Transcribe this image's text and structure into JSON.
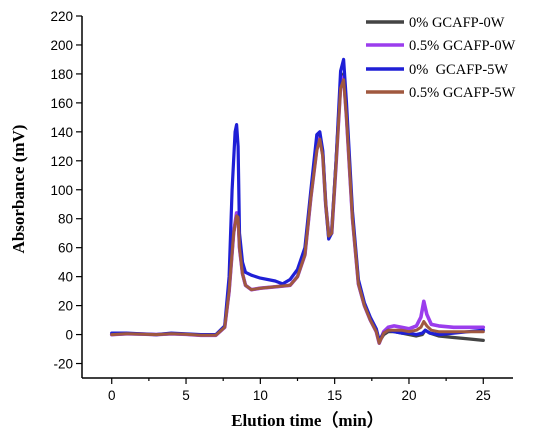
{
  "chart_data": {
    "type": "line",
    "title": "",
    "xlabel": "Elution time（min）",
    "ylabel": "Absorbance (mV)",
    "xlim": [
      -2,
      27
    ],
    "ylim": [
      -30,
      220
    ],
    "xticks": [
      0,
      5,
      10,
      15,
      20,
      25
    ],
    "yticks": [
      -20,
      0,
      20,
      40,
      60,
      80,
      100,
      120,
      140,
      160,
      180,
      200,
      220
    ],
    "grid": false,
    "legend": "top-right",
    "series": [
      {
        "name": "0% GCAFP-0W",
        "color": "#444444",
        "x": [
          0,
          1,
          2,
          3,
          4,
          5,
          6,
          7,
          7.6,
          7.9,
          8.2,
          8.4,
          8.5,
          8.6,
          8.8,
          9.0,
          9.4,
          10,
          11,
          12,
          12.5,
          13.0,
          13.4,
          13.8,
          14.0,
          14.2,
          14.4,
          14.6,
          14.8,
          15.1,
          15.4,
          15.6,
          15.8,
          16.2,
          16.6,
          17.0,
          17.4,
          17.8,
          18.0,
          18.3,
          18.6,
          19,
          19.5,
          20,
          20.5,
          20.9,
          21.1,
          21.4,
          22,
          23,
          24,
          25
        ],
        "y": [
          0,
          0.5,
          0.3,
          0,
          0.5,
          0.2,
          -0.5,
          -0.5,
          5,
          30,
          70,
          83,
          82,
          60,
          42,
          34,
          31,
          32,
          33,
          34,
          40,
          55,
          95,
          130,
          138,
          125,
          90,
          70,
          72,
          120,
          175,
          180,
          150,
          80,
          35,
          20,
          10,
          2,
          -5,
          0,
          2,
          2,
          1,
          0,
          -1,
          0,
          3,
          1,
          -1,
          -2,
          -3,
          -4
        ]
      },
      {
        "name": "0.5% GCAFP-0W",
        "color": "#9b3ded",
        "x": [
          0,
          1,
          2,
          3,
          4,
          5,
          6,
          7,
          7.6,
          7.9,
          8.2,
          8.4,
          8.5,
          8.6,
          8.8,
          9.0,
          9.4,
          10,
          11,
          12,
          12.5,
          13.0,
          13.4,
          13.8,
          14.0,
          14.2,
          14.4,
          14.6,
          14.8,
          15.1,
          15.4,
          15.6,
          15.8,
          16.2,
          16.6,
          17.0,
          17.4,
          17.8,
          18.0,
          18.3,
          18.6,
          19,
          19.5,
          20,
          20.5,
          20.8,
          21.0,
          21.2,
          21.5,
          22,
          23,
          24,
          25
        ],
        "y": [
          0,
          0.5,
          0.3,
          0,
          0.5,
          0.2,
          -0.5,
          -0.5,
          5,
          30,
          70,
          84,
          83,
          60,
          42,
          34,
          31,
          32,
          33,
          34,
          40,
          55,
          95,
          128,
          136,
          124,
          90,
          68,
          70,
          118,
          172,
          178,
          150,
          80,
          35,
          20,
          10,
          2,
          -6,
          2,
          5,
          6,
          5,
          4,
          6,
          12,
          23,
          14,
          7,
          6,
          5,
          5,
          5
        ]
      },
      {
        "name": "0%  GCAFP-5W",
        "color": "#1f1fd6",
        "x": [
          0,
          1,
          2,
          3,
          4,
          5,
          6,
          7,
          7.6,
          7.9,
          8.1,
          8.3,
          8.4,
          8.5,
          8.6,
          8.8,
          9.0,
          9.4,
          10,
          11,
          11.5,
          12,
          12.5,
          13.0,
          13.4,
          13.8,
          14.0,
          14.2,
          14.4,
          14.6,
          14.8,
          15.1,
          15.4,
          15.6,
          15.8,
          16.2,
          16.6,
          17.0,
          17.4,
          17.8,
          18.0,
          18.3,
          18.6,
          19,
          19.5,
          20,
          20.5,
          20.9,
          21.1,
          21.4,
          22,
          23,
          24,
          25
        ],
        "y": [
          1,
          1,
          0.5,
          0,
          1,
          0.5,
          0,
          0,
          6,
          40,
          100,
          140,
          145,
          130,
          70,
          50,
          43,
          41,
          39,
          37,
          35,
          38,
          45,
          60,
          100,
          138,
          140,
          127,
          90,
          66,
          70,
          120,
          182,
          190,
          160,
          85,
          38,
          22,
          12,
          4,
          -4,
          1,
          3,
          2,
          1,
          1,
          0,
          1,
          3,
          1,
          0,
          1,
          2,
          3
        ]
      },
      {
        "name": "0.5% GCAFP-5W",
        "color": "#a0583f",
        "x": [
          0,
          1,
          2,
          3,
          4,
          5,
          6,
          7,
          7.6,
          7.9,
          8.2,
          8.4,
          8.5,
          8.6,
          8.8,
          9.0,
          9.4,
          10,
          11,
          12,
          12.5,
          13.0,
          13.4,
          13.8,
          14.0,
          14.2,
          14.4,
          14.6,
          14.8,
          15.1,
          15.4,
          15.6,
          15.8,
          16.2,
          16.6,
          17.0,
          17.4,
          17.8,
          18.0,
          18.3,
          18.6,
          19,
          19.5,
          20,
          20.5,
          20.8,
          21.0,
          21.2,
          21.5,
          22,
          23,
          24,
          25
        ],
        "y": [
          0,
          0.5,
          0.3,
          0,
          0.5,
          0.2,
          -0.5,
          -0.5,
          5,
          30,
          70,
          82,
          81,
          60,
          42,
          34,
          31,
          32,
          33,
          34,
          40,
          55,
          95,
          127,
          135,
          123,
          90,
          68,
          70,
          118,
          170,
          176,
          150,
          80,
          35,
          20,
          10,
          2,
          -6,
          1,
          3,
          3,
          3,
          2,
          3,
          5,
          9,
          6,
          3,
          2,
          2,
          2,
          2
        ]
      }
    ]
  }
}
